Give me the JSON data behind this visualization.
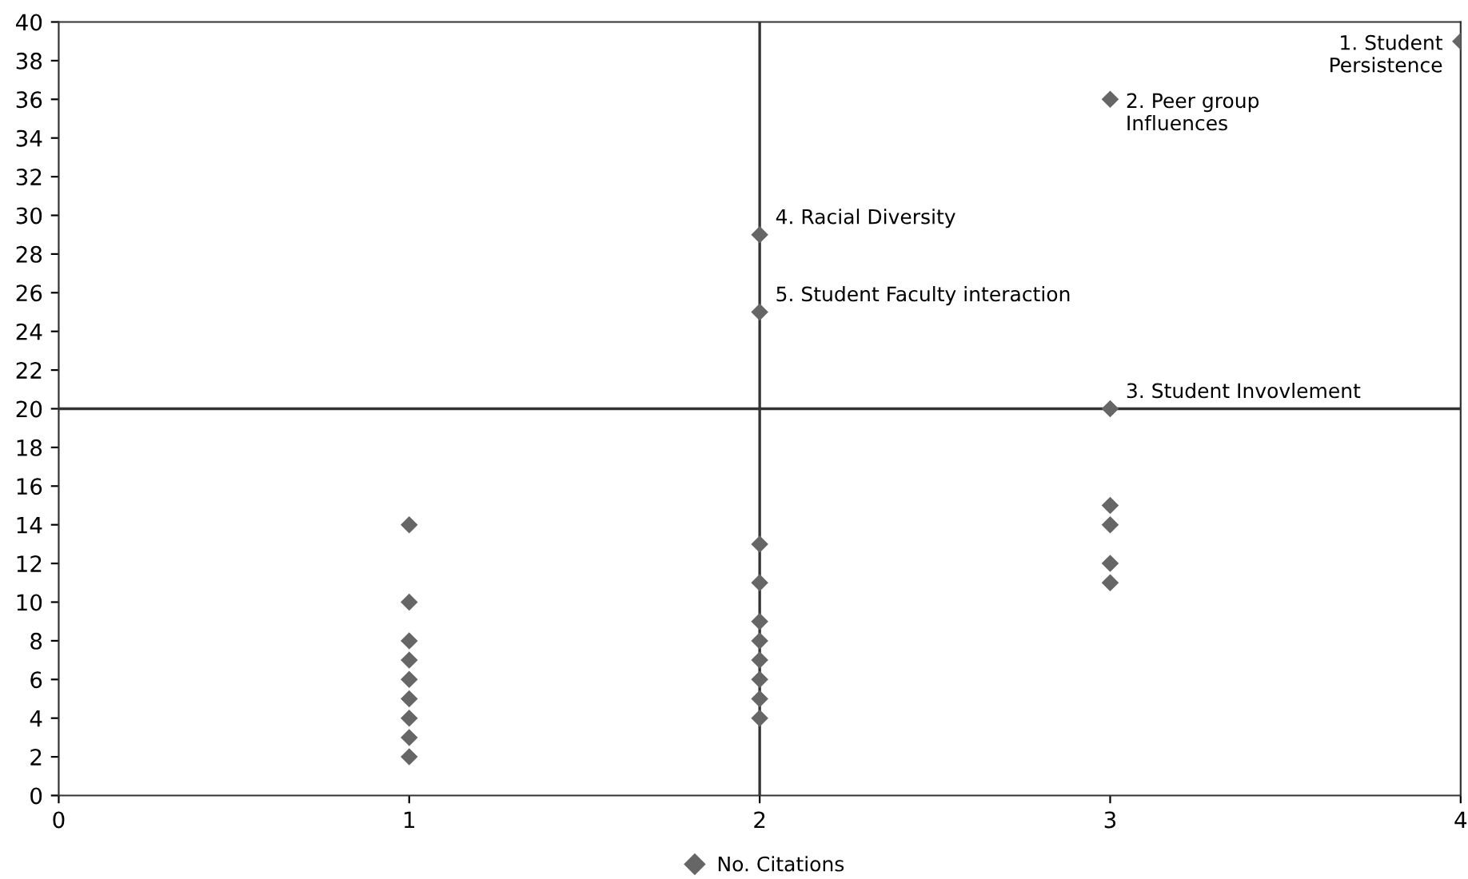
{
  "chart_data": {
    "type": "scatter",
    "series": [
      {
        "name": "No. Citations",
        "color": "#666666",
        "x": [
          1,
          1,
          1,
          1,
          1,
          1,
          1,
          1,
          1,
          2,
          2,
          2,
          2,
          2,
          2,
          2,
          2,
          2,
          2,
          3,
          3,
          3,
          3,
          3,
          3,
          4
        ],
        "values": [
          14,
          10,
          8,
          7,
          6,
          5,
          4,
          3,
          2,
          29,
          25,
          13,
          11,
          9,
          8,
          7,
          6,
          5,
          4,
          36,
          20,
          15,
          14,
          12,
          11,
          39
        ]
      }
    ],
    "marker": "diamond",
    "xlim": [
      0,
      4
    ],
    "xticks": [
      0,
      1,
      2,
      3,
      4
    ],
    "ylim": [
      0,
      40
    ],
    "yticks": [
      0,
      2,
      4,
      6,
      8,
      10,
      12,
      14,
      16,
      18,
      20,
      22,
      24,
      26,
      28,
      30,
      32,
      34,
      36,
      38,
      40
    ],
    "grid": false,
    "legend": "bottom",
    "ref_lines": [
      {
        "axis": "x",
        "value": 2,
        "color": "#333333"
      },
      {
        "axis": "y",
        "value": 20,
        "color": "#333333"
      }
    ],
    "annotations": [
      {
        "text": "1. Student\nPersistence",
        "x": 4,
        "y": 39
      },
      {
        "text": "2. Peer group\nInfluences",
        "x": 3,
        "y": 36
      },
      {
        "text": "3. Student Invovlement",
        "x": 3,
        "y": 20
      },
      {
        "text": "4. Racial Diversity",
        "x": 2,
        "y": 29
      },
      {
        "text": "5. Student Faculty interaction",
        "x": 2,
        "y": 25
      }
    ]
  }
}
